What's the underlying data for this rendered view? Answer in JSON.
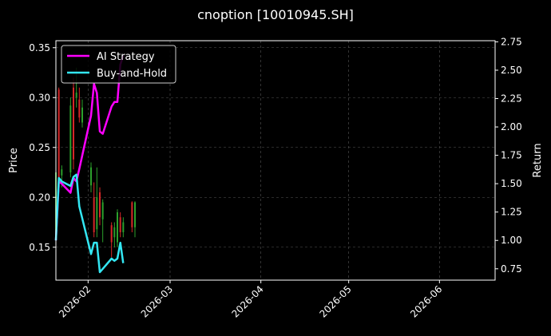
{
  "colors": {
    "background": "#000000",
    "axis": "#ffffff",
    "grid": "#555555",
    "candle_up": "#2ca02c",
    "candle_down": "#d62728"
  },
  "chart_data": {
    "type": "line",
    "title": "cnoption [10010945.SH]",
    "xlabel": "",
    "ylabel": "Price",
    "y2label": "Return",
    "grid": true,
    "legend": "top-left",
    "xlim": [
      "2026-01-21",
      "2026-06-20"
    ],
    "ylim": [
      0.117,
      0.357
    ],
    "y2lim": [
      0.65,
      2.76
    ],
    "x_ticks": [
      "2026-02",
      "2026-03",
      "2026-04",
      "2026-05",
      "2026-06"
    ],
    "y_ticks": [
      "0.15",
      "0.20",
      "0.25",
      "0.30",
      "0.35"
    ],
    "y2_ticks": [
      "0.75",
      "1.00",
      "1.25",
      "1.50",
      "1.75",
      "2.00",
      "2.25",
      "2.50",
      "2.75"
    ],
    "series": [
      {
        "name": "AI Strategy",
        "color": "#ff00ff",
        "axis": "right",
        "x": [
          "2026-01-21",
          "2026-01-22",
          "2026-01-23",
          "2026-01-26",
          "2026-01-27",
          "2026-01-28",
          "2026-01-29",
          "2026-02-02",
          "2026-02-03",
          "2026-02-04",
          "2026-02-05",
          "2026-02-06",
          "2026-02-09",
          "2026-02-10",
          "2026-02-11",
          "2026-02-12",
          "2026-02-13"
        ],
        "values": [
          1.0,
          1.52,
          1.5,
          1.42,
          1.55,
          1.52,
          1.63,
          2.1,
          2.38,
          2.3,
          1.96,
          1.94,
          2.18,
          2.22,
          2.22,
          2.55,
          2.63
        ]
      },
      {
        "name": "Buy-and-Hold",
        "color": "#33e6f2",
        "axis": "right",
        "x": [
          "2026-01-21",
          "2026-01-22",
          "2026-01-23",
          "2026-01-26",
          "2026-01-27",
          "2026-01-28",
          "2026-01-29",
          "2026-02-02",
          "2026-02-03",
          "2026-02-04",
          "2026-02-05",
          "2026-02-06",
          "2026-02-09",
          "2026-02-10",
          "2026-02-11",
          "2026-02-12",
          "2026-02-13"
        ],
        "values": [
          1.0,
          1.55,
          1.52,
          1.48,
          1.56,
          1.58,
          1.3,
          0.88,
          0.98,
          0.98,
          0.72,
          0.75,
          0.84,
          0.82,
          0.84,
          0.98,
          0.8
        ]
      }
    ],
    "candles": [
      {
        "date": "2026-01-21",
        "open": 0.16,
        "close": 0.225,
        "high": 0.308,
        "low": 0.158
      },
      {
        "date": "2026-01-22",
        "open": 0.308,
        "close": 0.21,
        "high": 0.31,
        "low": 0.205
      },
      {
        "date": "2026-01-23",
        "open": 0.222,
        "close": 0.228,
        "high": 0.232,
        "low": 0.21
      },
      {
        "date": "2026-01-26",
        "open": 0.225,
        "close": 0.292,
        "high": 0.3,
        "low": 0.22
      },
      {
        "date": "2026-01-27",
        "open": 0.31,
        "close": 0.238,
        "high": 0.32,
        "low": 0.228
      },
      {
        "date": "2026-01-28",
        "open": 0.3,
        "close": 0.305,
        "high": 0.33,
        "low": 0.29
      },
      {
        "date": "2026-01-29",
        "open": 0.298,
        "close": 0.28,
        "high": 0.31,
        "low": 0.275
      },
      {
        "date": "2026-01-30",
        "open": 0.275,
        "close": 0.29,
        "high": 0.298,
        "low": 0.27
      },
      {
        "date": "2026-02-02",
        "open": 0.212,
        "close": 0.23,
        "high": 0.235,
        "low": 0.205
      },
      {
        "date": "2026-02-03",
        "open": 0.2,
        "close": 0.165,
        "high": 0.215,
        "low": 0.16
      },
      {
        "date": "2026-02-04",
        "open": 0.168,
        "close": 0.2,
        "high": 0.23,
        "low": 0.16
      },
      {
        "date": "2026-02-05",
        "open": 0.205,
        "close": 0.18,
        "high": 0.21,
        "low": 0.172
      },
      {
        "date": "2026-02-06",
        "open": 0.178,
        "close": 0.195,
        "high": 0.198,
        "low": 0.155
      },
      {
        "date": "2026-02-09",
        "open": 0.172,
        "close": 0.155,
        "high": 0.175,
        "low": 0.14
      },
      {
        "date": "2026-02-10",
        "open": 0.16,
        "close": 0.17,
        "high": 0.175,
        "low": 0.15
      },
      {
        "date": "2026-02-11",
        "open": 0.155,
        "close": 0.185,
        "high": 0.188,
        "low": 0.15
      },
      {
        "date": "2026-02-12",
        "open": 0.18,
        "close": 0.165,
        "high": 0.185,
        "low": 0.16
      },
      {
        "date": "2026-02-13",
        "open": 0.165,
        "close": 0.175,
        "high": 0.18,
        "low": 0.16
      },
      {
        "date": "2026-02-16",
        "open": 0.195,
        "close": 0.17,
        "high": 0.196,
        "low": 0.165
      },
      {
        "date": "2026-02-17",
        "open": 0.17,
        "close": 0.195,
        "high": 0.196,
        "low": 0.16
      }
    ]
  }
}
